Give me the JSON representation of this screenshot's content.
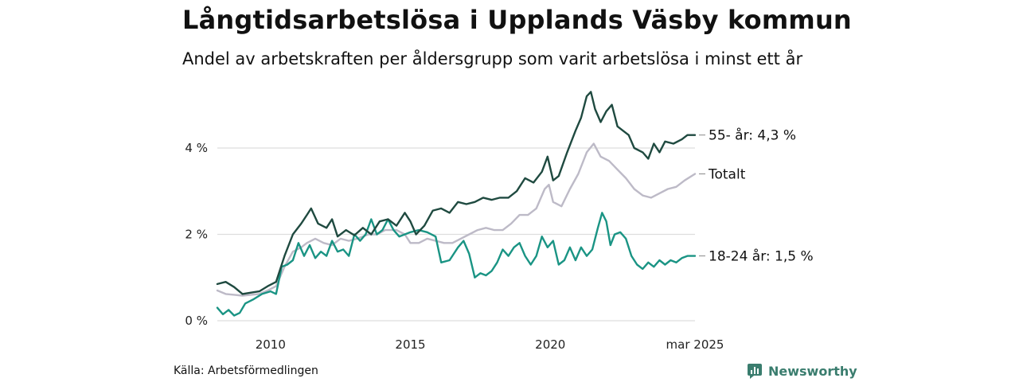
{
  "title": "Långtidsarbetslösa i Upplands Väsby kommun",
  "subtitle": "Andel av arbetskraften per åldersgrupp som varit arbetslösa i minst ett år",
  "source": "Källa: Arbetsförmedlingen",
  "brand": {
    "name": "Newsworthy",
    "icon": "newsworthy-logo-icon",
    "color": "#3a7d6e"
  },
  "chart_data": {
    "type": "line",
    "x_range": [
      2008.1,
      2025.17
    ],
    "ylim": [
      0,
      5.4
    ],
    "y_ticks": [
      0,
      2,
      4
    ],
    "y_tick_labels": [
      "0 %",
      "2 %",
      "4 %"
    ],
    "x_ticks": [
      2010,
      2015,
      2020,
      2025.17
    ],
    "x_tick_labels": [
      "2010",
      "2015",
      "2020",
      "mar 2025"
    ],
    "grid": "horizontal",
    "series": [
      {
        "name": "55- år",
        "end_label": "55- år: 4,3 %",
        "color": "#1f4a40",
        "points": [
          [
            2008.1,
            0.85
          ],
          [
            2008.4,
            0.9
          ],
          [
            2008.7,
            0.78
          ],
          [
            2009.0,
            0.62
          ],
          [
            2009.3,
            0.65
          ],
          [
            2009.6,
            0.68
          ],
          [
            2009.9,
            0.8
          ],
          [
            2010.2,
            0.9
          ],
          [
            2010.5,
            1.5
          ],
          [
            2010.8,
            2.0
          ],
          [
            2011.1,
            2.25
          ],
          [
            2011.3,
            2.45
          ],
          [
            2011.45,
            2.6
          ],
          [
            2011.7,
            2.25
          ],
          [
            2012.0,
            2.15
          ],
          [
            2012.2,
            2.35
          ],
          [
            2012.4,
            1.95
          ],
          [
            2012.7,
            2.1
          ],
          [
            2013.0,
            1.98
          ],
          [
            2013.3,
            2.15
          ],
          [
            2013.6,
            2.0
          ],
          [
            2013.9,
            2.3
          ],
          [
            2014.2,
            2.35
          ],
          [
            2014.5,
            2.2
          ],
          [
            2014.8,
            2.5
          ],
          [
            2015.0,
            2.3
          ],
          [
            2015.2,
            2.0
          ],
          [
            2015.5,
            2.2
          ],
          [
            2015.8,
            2.55
          ],
          [
            2016.1,
            2.6
          ],
          [
            2016.4,
            2.5
          ],
          [
            2016.7,
            2.75
          ],
          [
            2017.0,
            2.7
          ],
          [
            2017.3,
            2.75
          ],
          [
            2017.6,
            2.85
          ],
          [
            2017.9,
            2.8
          ],
          [
            2018.2,
            2.85
          ],
          [
            2018.5,
            2.85
          ],
          [
            2018.8,
            3.0
          ],
          [
            2019.1,
            3.3
          ],
          [
            2019.4,
            3.2
          ],
          [
            2019.7,
            3.45
          ],
          [
            2019.9,
            3.8
          ],
          [
            2020.1,
            3.25
          ],
          [
            2020.3,
            3.35
          ],
          [
            2020.6,
            3.9
          ],
          [
            2020.9,
            4.4
          ],
          [
            2021.1,
            4.7
          ],
          [
            2021.3,
            5.2
          ],
          [
            2021.45,
            5.3
          ],
          [
            2021.6,
            4.9
          ],
          [
            2021.8,
            4.6
          ],
          [
            2022.0,
            4.85
          ],
          [
            2022.2,
            5.0
          ],
          [
            2022.4,
            4.5
          ],
          [
            2022.6,
            4.4
          ],
          [
            2022.8,
            4.3
          ],
          [
            2023.0,
            4.0
          ],
          [
            2023.3,
            3.9
          ],
          [
            2023.5,
            3.75
          ],
          [
            2023.7,
            4.1
          ],
          [
            2023.9,
            3.9
          ],
          [
            2024.1,
            4.15
          ],
          [
            2024.4,
            4.1
          ],
          [
            2024.7,
            4.2
          ],
          [
            2024.9,
            4.3
          ],
          [
            2025.17,
            4.3
          ]
        ]
      },
      {
        "name": "Totalt",
        "end_label": "Totalt",
        "color": "#bdbac7",
        "points": [
          [
            2008.1,
            0.7
          ],
          [
            2008.4,
            0.62
          ],
          [
            2008.7,
            0.6
          ],
          [
            2009.0,
            0.58
          ],
          [
            2009.3,
            0.6
          ],
          [
            2009.6,
            0.62
          ],
          [
            2009.9,
            0.7
          ],
          [
            2010.2,
            0.8
          ],
          [
            2010.5,
            1.25
          ],
          [
            2010.8,
            1.6
          ],
          [
            2011.1,
            1.7
          ],
          [
            2011.3,
            1.8
          ],
          [
            2011.6,
            1.9
          ],
          [
            2011.9,
            1.8
          ],
          [
            2012.2,
            1.75
          ],
          [
            2012.5,
            1.9
          ],
          [
            2012.8,
            1.85
          ],
          [
            2013.1,
            1.9
          ],
          [
            2013.5,
            2.0
          ],
          [
            2013.8,
            2.0
          ],
          [
            2014.1,
            2.1
          ],
          [
            2014.5,
            2.1
          ],
          [
            2014.8,
            2.0
          ],
          [
            2015.0,
            1.8
          ],
          [
            2015.3,
            1.8
          ],
          [
            2015.6,
            1.9
          ],
          [
            2015.9,
            1.85
          ],
          [
            2016.2,
            1.8
          ],
          [
            2016.5,
            1.8
          ],
          [
            2016.8,
            1.9
          ],
          [
            2017.1,
            2.0
          ],
          [
            2017.4,
            2.1
          ],
          [
            2017.7,
            2.15
          ],
          [
            2018.0,
            2.1
          ],
          [
            2018.3,
            2.1
          ],
          [
            2018.6,
            2.25
          ],
          [
            2018.9,
            2.45
          ],
          [
            2019.2,
            2.45
          ],
          [
            2019.5,
            2.6
          ],
          [
            2019.8,
            3.05
          ],
          [
            2019.95,
            3.15
          ],
          [
            2020.1,
            2.75
          ],
          [
            2020.4,
            2.65
          ],
          [
            2020.7,
            3.05
          ],
          [
            2021.0,
            3.4
          ],
          [
            2021.3,
            3.9
          ],
          [
            2021.55,
            4.1
          ],
          [
            2021.8,
            3.8
          ],
          [
            2022.1,
            3.7
          ],
          [
            2022.4,
            3.5
          ],
          [
            2022.7,
            3.3
          ],
          [
            2023.0,
            3.05
          ],
          [
            2023.3,
            2.9
          ],
          [
            2023.6,
            2.85
          ],
          [
            2023.9,
            2.95
          ],
          [
            2024.2,
            3.05
          ],
          [
            2024.5,
            3.1
          ],
          [
            2024.8,
            3.25
          ],
          [
            2025.17,
            3.4
          ]
        ]
      },
      {
        "name": "18-24 år",
        "end_label": "18-24 år: 1,5 %",
        "color": "#1a9484",
        "points": [
          [
            2008.1,
            0.3
          ],
          [
            2008.3,
            0.15
          ],
          [
            2008.5,
            0.25
          ],
          [
            2008.7,
            0.12
          ],
          [
            2008.9,
            0.18
          ],
          [
            2009.1,
            0.4
          ],
          [
            2009.4,
            0.5
          ],
          [
            2009.7,
            0.62
          ],
          [
            2010.0,
            0.68
          ],
          [
            2010.2,
            0.62
          ],
          [
            2010.4,
            1.25
          ],
          [
            2010.6,
            1.3
          ],
          [
            2010.8,
            1.4
          ],
          [
            2011.0,
            1.8
          ],
          [
            2011.2,
            1.5
          ],
          [
            2011.4,
            1.75
          ],
          [
            2011.6,
            1.45
          ],
          [
            2011.8,
            1.6
          ],
          [
            2012.0,
            1.5
          ],
          [
            2012.2,
            1.85
          ],
          [
            2012.4,
            1.6
          ],
          [
            2012.6,
            1.65
          ],
          [
            2012.8,
            1.5
          ],
          [
            2013.0,
            2.0
          ],
          [
            2013.2,
            1.85
          ],
          [
            2013.4,
            2.0
          ],
          [
            2013.6,
            2.35
          ],
          [
            2013.8,
            2.0
          ],
          [
            2014.0,
            2.1
          ],
          [
            2014.2,
            2.35
          ],
          [
            2014.4,
            2.1
          ],
          [
            2014.6,
            1.95
          ],
          [
            2014.8,
            2.0
          ],
          [
            2015.0,
            2.05
          ],
          [
            2015.3,
            2.1
          ],
          [
            2015.6,
            2.05
          ],
          [
            2015.9,
            1.95
          ],
          [
            2016.1,
            1.35
          ],
          [
            2016.4,
            1.4
          ],
          [
            2016.7,
            1.7
          ],
          [
            2016.9,
            1.85
          ],
          [
            2017.1,
            1.55
          ],
          [
            2017.3,
            1.0
          ],
          [
            2017.5,
            1.1
          ],
          [
            2017.7,
            1.05
          ],
          [
            2017.9,
            1.15
          ],
          [
            2018.1,
            1.35
          ],
          [
            2018.3,
            1.65
          ],
          [
            2018.5,
            1.5
          ],
          [
            2018.7,
            1.7
          ],
          [
            2018.9,
            1.8
          ],
          [
            2019.1,
            1.5
          ],
          [
            2019.3,
            1.3
          ],
          [
            2019.5,
            1.5
          ],
          [
            2019.7,
            1.95
          ],
          [
            2019.9,
            1.7
          ],
          [
            2020.1,
            1.85
          ],
          [
            2020.3,
            1.3
          ],
          [
            2020.5,
            1.4
          ],
          [
            2020.7,
            1.7
          ],
          [
            2020.9,
            1.4
          ],
          [
            2021.1,
            1.7
          ],
          [
            2021.3,
            1.5
          ],
          [
            2021.5,
            1.65
          ],
          [
            2021.7,
            2.15
          ],
          [
            2021.85,
            2.5
          ],
          [
            2022.0,
            2.3
          ],
          [
            2022.15,
            1.75
          ],
          [
            2022.3,
            2.0
          ],
          [
            2022.5,
            2.05
          ],
          [
            2022.7,
            1.9
          ],
          [
            2022.9,
            1.5
          ],
          [
            2023.1,
            1.3
          ],
          [
            2023.3,
            1.2
          ],
          [
            2023.5,
            1.35
          ],
          [
            2023.7,
            1.25
          ],
          [
            2023.9,
            1.4
          ],
          [
            2024.1,
            1.3
          ],
          [
            2024.3,
            1.4
          ],
          [
            2024.5,
            1.35
          ],
          [
            2024.7,
            1.45
          ],
          [
            2024.9,
            1.5
          ],
          [
            2025.17,
            1.5
          ]
        ]
      }
    ]
  }
}
